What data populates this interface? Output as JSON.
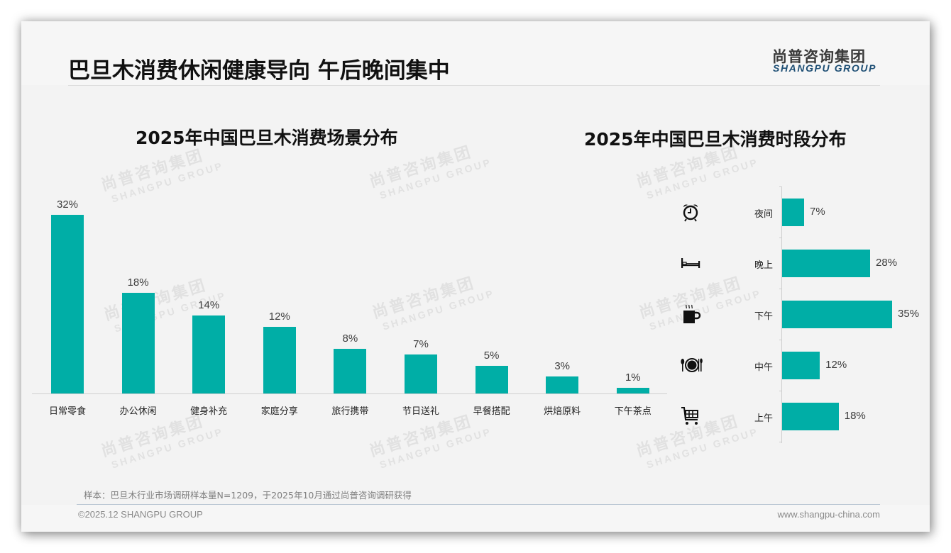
{
  "header": {
    "title": "巴旦木消费休闲健康导向 午后晚间集中",
    "logo_cn": "尚普咨询集团",
    "logo_en": "SHANGPU GROUP"
  },
  "watermark": {
    "cn": "尚普咨询集团",
    "en": "SHANGPU GROUP"
  },
  "colors": {
    "bar": "#00aea6",
    "logo_en": "#1d4e74",
    "background": "#f3f3f3"
  },
  "chart_data": [
    {
      "type": "bar",
      "title": "2025年中国巴旦木消费场景分布",
      "categories": [
        "日常零食",
        "办公休闲",
        "健身补充",
        "家庭分享",
        "旅行携带",
        "节日送礼",
        "早餐搭配",
        "烘焙原料",
        "下午茶点"
      ],
      "values": [
        32,
        18,
        14,
        12,
        8,
        7,
        5,
        3,
        1
      ],
      "labels": [
        "32%",
        "18%",
        "14%",
        "12%",
        "8%",
        "7%",
        "5%",
        "3%",
        "1%"
      ],
      "unit": "%",
      "xlabel": "",
      "ylabel": "",
      "grid": false,
      "legend": "none"
    },
    {
      "type": "bar",
      "orientation": "horizontal",
      "title": "2025年中国巴旦木消费时段分布",
      "categories": [
        "夜间",
        "晚上",
        "下午",
        "中午",
        "上午"
      ],
      "icons": [
        "alarm-clock-icon",
        "bed-icon",
        "hot-coffee-cup-icon",
        "plate-fork-knife-icon",
        "shopping-cart-icon"
      ],
      "values": [
        7,
        28,
        35,
        12,
        18
      ],
      "labels": [
        "7%",
        "28%",
        "35%",
        "12%",
        "18%"
      ],
      "unit": "%",
      "grid": false,
      "legend": "none"
    }
  ],
  "footer": {
    "note": "样本：巴旦木行业市场调研样本量N=1209，于2025年10月通过尚普咨询调研获得",
    "copyright": "©2025.12 SHANGPU GROUP",
    "website": "www.shangpu-china.com"
  }
}
